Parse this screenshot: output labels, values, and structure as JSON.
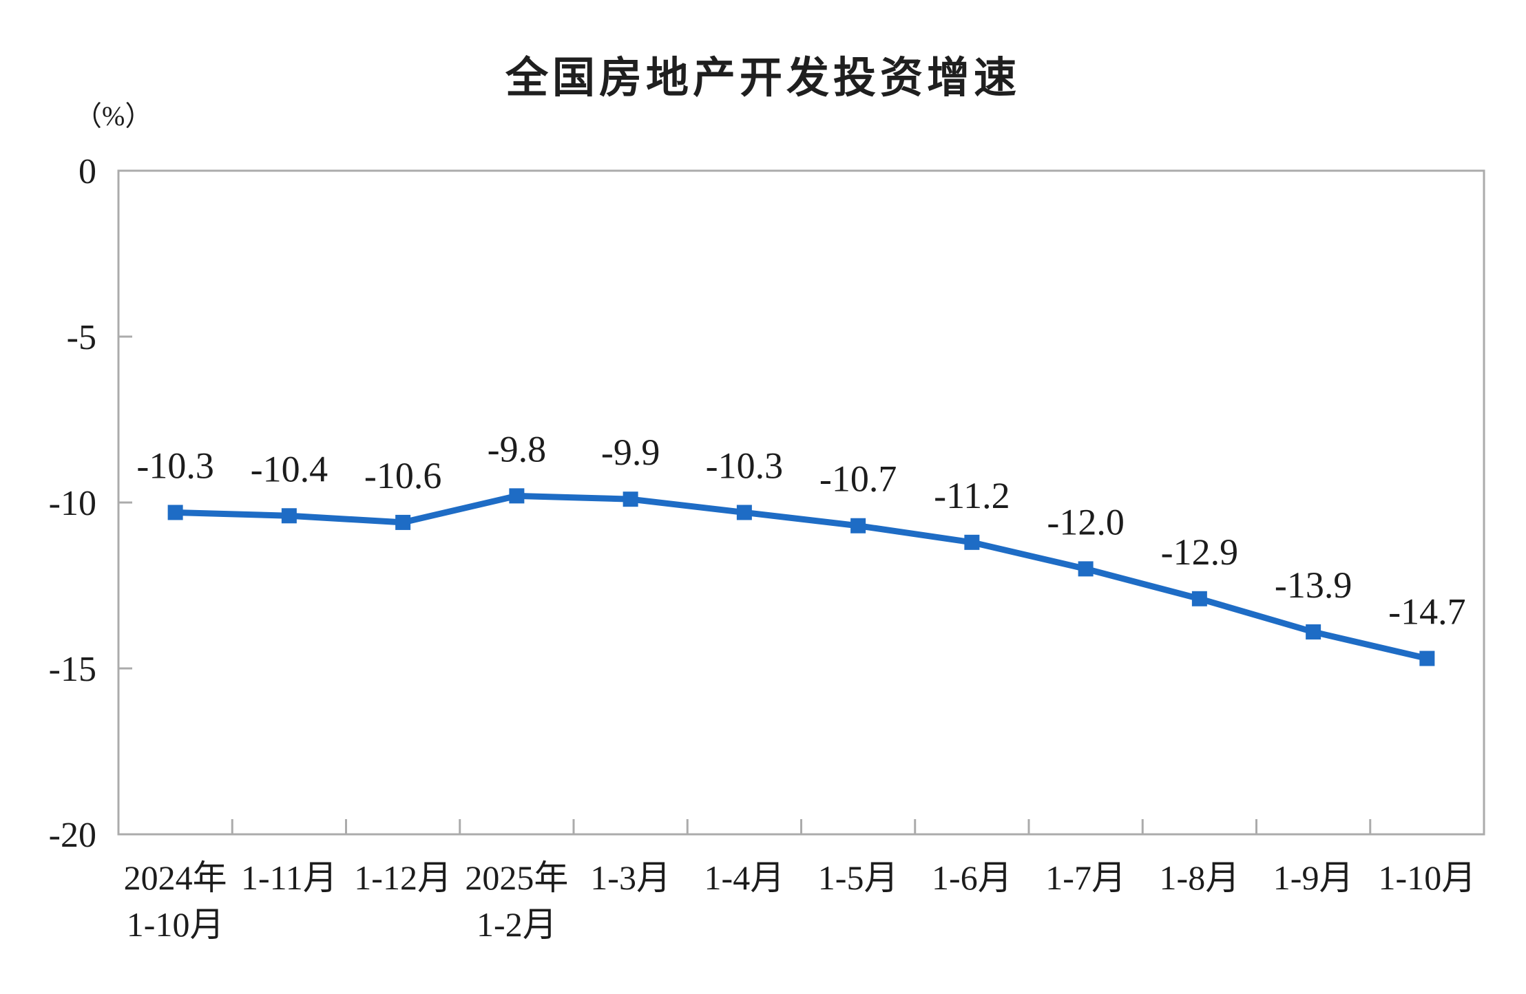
{
  "chart_data": {
    "type": "line",
    "title": "全国房地产开发投资增速",
    "unit_label": "（%）",
    "categories": [
      [
        "2024年",
        "1-10月"
      ],
      [
        "1-11月"
      ],
      [
        "1-12月"
      ],
      [
        "2025年",
        "1-2月"
      ],
      [
        "1-3月"
      ],
      [
        "1-4月"
      ],
      [
        "1-5月"
      ],
      [
        "1-6月"
      ],
      [
        "1-7月"
      ],
      [
        "1-8月"
      ],
      [
        "1-9月"
      ],
      [
        "1-10月"
      ]
    ],
    "series": [
      {
        "name": "全国房地产开发投资增速",
        "values": [
          -10.3,
          -10.4,
          -10.6,
          -9.8,
          -9.9,
          -10.3,
          -10.7,
          -11.2,
          -12.0,
          -12.9,
          -13.9,
          -14.7
        ]
      }
    ],
    "point_labels": [
      "-10.3",
      "-10.4",
      "-10.6",
      "-9.8",
      "-9.9",
      "-10.3",
      "-10.7",
      "-11.2",
      "-12.0",
      "-12.9",
      "-13.9",
      "-14.7"
    ],
    "ylim": [
      -20,
      0
    ],
    "yticks": [
      {
        "value": 0,
        "label": "0"
      },
      {
        "value": -5,
        "label": "-5"
      },
      {
        "value": -10,
        "label": "-10"
      },
      {
        "value": -15,
        "label": "-15"
      },
      {
        "value": -20,
        "label": "-20"
      }
    ],
    "grid": false,
    "legend": "none",
    "marker_shape": "square",
    "colors": {
      "line": "#1E6CC5",
      "marker": "#1E6CC5",
      "axis": "#ABABAB",
      "text": "#1C1C1C"
    }
  }
}
